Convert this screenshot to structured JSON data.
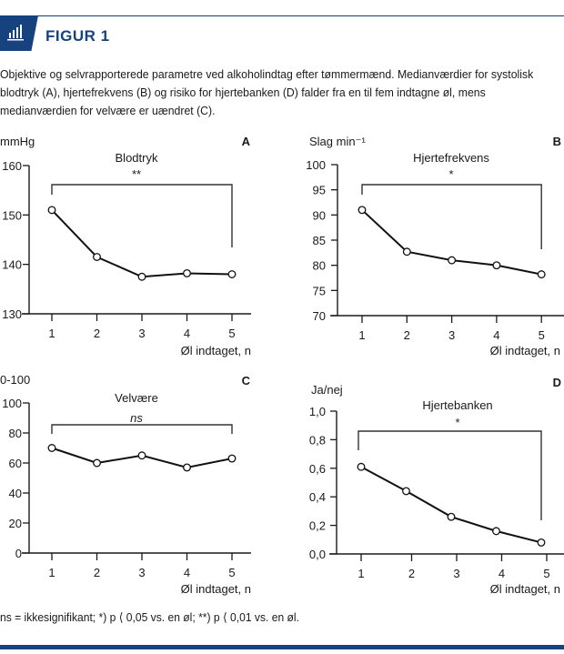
{
  "figure": {
    "label": "FIGUR 1",
    "icon": "bar-chart-icon",
    "caption": "Objektive og selvrapporterede parametre ved alkoholindtag efter tømmermænd. Medianværdier for systolisk blodtryk (A), hjertefrekvens (B) og risiko for hjertebanken (D) falder fra en til fem indtagne øl, mens medianværdien for velvære er uændret (C).",
    "footnote": "ns = ikkesignifikant; *) p ⟨ 0,05 vs. en øl; **) p ⟨ 0,01 vs. en øl.",
    "accent_color": "#16427e"
  },
  "chart_data": [
    {
      "panel": "A",
      "type": "line",
      "title": "Blodtryk",
      "significance": "**",
      "ylabel": "mmHg",
      "xlabel": "Øl indtaget, n",
      "x": [
        1,
        2,
        3,
        4,
        5
      ],
      "values": [
        151,
        141.5,
        137.5,
        138.2,
        138
      ],
      "ylim": [
        130,
        160
      ],
      "yticks": [
        130,
        140,
        150,
        160
      ],
      "ytick_labels": [
        "130",
        "140",
        "150",
        "160"
      ],
      "xtick_labels": [
        "1",
        "2",
        "3",
        "4",
        "5"
      ],
      "grid": false
    },
    {
      "panel": "B",
      "type": "line",
      "title": "Hjertefrekvens",
      "significance": "*",
      "ylabel": "Slag min⁻¹",
      "xlabel": "Øl indtaget, n",
      "x": [
        1,
        2,
        3,
        4,
        5
      ],
      "values": [
        91,
        82.7,
        81,
        80,
        78.2
      ],
      "ylim": [
        70,
        100
      ],
      "yticks": [
        70,
        75,
        80,
        85,
        90,
        95,
        100
      ],
      "ytick_labels": [
        "70",
        "75",
        "80",
        "85",
        "90",
        "95",
        "100"
      ],
      "xtick_labels": [
        "1",
        "2",
        "3",
        "4",
        "5"
      ],
      "grid": false
    },
    {
      "panel": "C",
      "type": "line",
      "title": "Velvære",
      "significance": "ns",
      "ylabel": "0-100",
      "xlabel": "Øl indtaget, n",
      "x": [
        1,
        2,
        3,
        4,
        5
      ],
      "values": [
        70,
        60,
        65,
        57,
        63
      ],
      "ylim": [
        0,
        100
      ],
      "yticks": [
        0,
        20,
        40,
        60,
        80,
        100
      ],
      "ytick_labels": [
        "0",
        "20",
        "40",
        "60",
        "80",
        "100"
      ],
      "xtick_labels": [
        "1",
        "2",
        "3",
        "4",
        "5"
      ],
      "grid": false
    },
    {
      "panel": "D",
      "type": "line",
      "title": "Hjertebanken",
      "significance": "*",
      "ylabel": "Ja/nej",
      "xlabel": "Øl indtaget, n",
      "x": [
        1,
        2,
        3,
        4,
        5
      ],
      "values": [
        0.61,
        0.44,
        0.26,
        0.16,
        0.08
      ],
      "ylim": [
        0,
        1
      ],
      "yticks": [
        0,
        0.2,
        0.4,
        0.6,
        0.8,
        1.0
      ],
      "ytick_labels": [
        "0,0",
        "0,2",
        "0,4",
        "0,6",
        "0,8",
        "1,0"
      ],
      "xtick_labels": [
        "1",
        "2",
        "3",
        "4",
        "5"
      ],
      "grid": false
    }
  ]
}
